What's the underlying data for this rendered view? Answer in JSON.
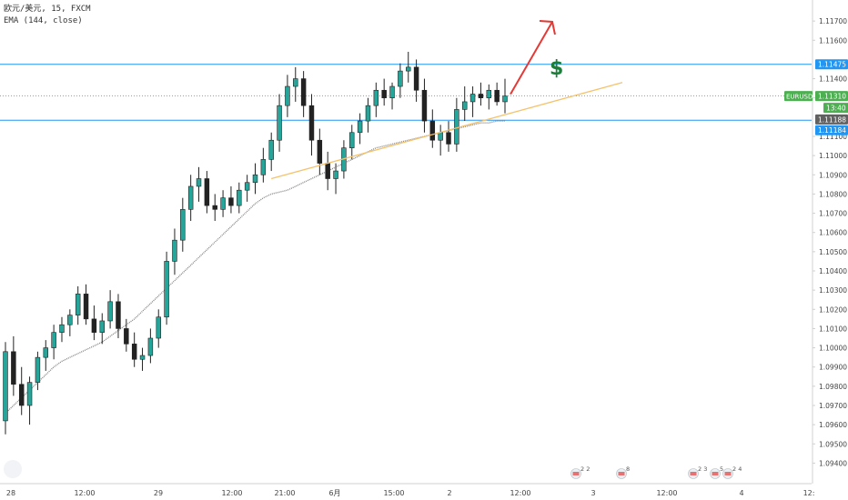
{
  "header": {
    "symbol_line": "欧元/美元, 15, FXCM",
    "indicator_line": "EMA (144, close)"
  },
  "chart_data": {
    "type": "candlestick",
    "symbol": "EURUSD",
    "ylim": [
      1.0935,
      1.118
    ],
    "y_ticks": [
      1.094,
      1.095,
      1.096,
      1.097,
      1.098,
      1.099,
      1.1,
      1.101,
      1.102,
      1.103,
      1.104,
      1.105,
      1.106,
      1.107,
      1.108,
      1.109,
      1.11,
      1.111,
      1.113,
      1.114,
      1.116,
      1.117
    ],
    "x_ticks": [
      "28",
      "12:00",
      "29",
      "12:00",
      "21:00",
      "6月",
      "15:00",
      "2",
      "12:00",
      "3",
      "12:00",
      "4",
      "12:"
    ],
    "ohlc": [
      {
        "o": 1.0962,
        "h": 1.1003,
        "l": 1.0955,
        "c": 1.0998
      },
      {
        "o": 1.0998,
        "h": 1.1006,
        "l": 1.0975,
        "c": 1.0981
      },
      {
        "o": 1.0981,
        "h": 1.099,
        "l": 1.0965,
        "c": 1.097
      },
      {
        "o": 1.097,
        "h": 1.0985,
        "l": 1.096,
        "c": 1.0982
      },
      {
        "o": 1.0982,
        "h": 1.0998,
        "l": 1.0978,
        "c": 1.0995
      },
      {
        "o": 1.0995,
        "h": 1.1004,
        "l": 1.0988,
        "c": 1.1
      },
      {
        "o": 1.1,
        "h": 1.1012,
        "l": 1.0994,
        "c": 1.1008
      },
      {
        "o": 1.1008,
        "h": 1.1016,
        "l": 1.1003,
        "c": 1.1012
      },
      {
        "o": 1.1012,
        "h": 1.102,
        "l": 1.1006,
        "c": 1.1017
      },
      {
        "o": 1.1017,
        "h": 1.1032,
        "l": 1.1012,
        "c": 1.1028
      },
      {
        "o": 1.1028,
        "h": 1.1033,
        "l": 1.1012,
        "c": 1.1015
      },
      {
        "o": 1.1015,
        "h": 1.1022,
        "l": 1.1004,
        "c": 1.1008
      },
      {
        "o": 1.1008,
        "h": 1.1018,
        "l": 1.1002,
        "c": 1.1014
      },
      {
        "o": 1.1014,
        "h": 1.103,
        "l": 1.101,
        "c": 1.1024
      },
      {
        "o": 1.1024,
        "h": 1.1028,
        "l": 1.1005,
        "c": 1.101
      },
      {
        "o": 1.101,
        "h": 1.1015,
        "l": 1.0998,
        "c": 1.1002
      },
      {
        "o": 1.1002,
        "h": 1.1008,
        "l": 1.099,
        "c": 1.0994
      },
      {
        "o": 1.0994,
        "h": 1.1,
        "l": 1.0988,
        "c": 1.0996
      },
      {
        "o": 1.0996,
        "h": 1.101,
        "l": 1.0992,
        "c": 1.1005
      },
      {
        "o": 1.1005,
        "h": 1.102,
        "l": 1.1,
        "c": 1.1016
      },
      {
        "o": 1.1016,
        "h": 1.105,
        "l": 1.1012,
        "c": 1.1045
      },
      {
        "o": 1.1045,
        "h": 1.1062,
        "l": 1.1038,
        "c": 1.1056
      },
      {
        "o": 1.1056,
        "h": 1.1078,
        "l": 1.105,
        "c": 1.1072
      },
      {
        "o": 1.1072,
        "h": 1.109,
        "l": 1.1066,
        "c": 1.1084
      },
      {
        "o": 1.1084,
        "h": 1.1094,
        "l": 1.1076,
        "c": 1.1088
      },
      {
        "o": 1.1088,
        "h": 1.1092,
        "l": 1.107,
        "c": 1.1074
      },
      {
        "o": 1.1074,
        "h": 1.108,
        "l": 1.1066,
        "c": 1.1072
      },
      {
        "o": 1.1072,
        "h": 1.1082,
        "l": 1.1068,
        "c": 1.1078
      },
      {
        "o": 1.1078,
        "h": 1.1084,
        "l": 1.107,
        "c": 1.1074
      },
      {
        "o": 1.1074,
        "h": 1.1086,
        "l": 1.107,
        "c": 1.1082
      },
      {
        "o": 1.1082,
        "h": 1.109,
        "l": 1.1076,
        "c": 1.1086
      },
      {
        "o": 1.1086,
        "h": 1.1096,
        "l": 1.108,
        "c": 1.109
      },
      {
        "o": 1.109,
        "h": 1.1104,
        "l": 1.1086,
        "c": 1.1098
      },
      {
        "o": 1.1098,
        "h": 1.1112,
        "l": 1.1092,
        "c": 1.1108
      },
      {
        "o": 1.1108,
        "h": 1.1132,
        "l": 1.1102,
        "c": 1.1126
      },
      {
        "o": 1.1126,
        "h": 1.1142,
        "l": 1.112,
        "c": 1.1136
      },
      {
        "o": 1.1136,
        "h": 1.1146,
        "l": 1.1128,
        "c": 1.114
      },
      {
        "o": 1.114,
        "h": 1.1144,
        "l": 1.112,
        "c": 1.1126
      },
      {
        "o": 1.1126,
        "h": 1.1132,
        "l": 1.11,
        "c": 1.1108
      },
      {
        "o": 1.1108,
        "h": 1.1114,
        "l": 1.109,
        "c": 1.1096
      },
      {
        "o": 1.1096,
        "h": 1.1102,
        "l": 1.1082,
        "c": 1.1088
      },
      {
        "o": 1.1088,
        "h": 1.1096,
        "l": 1.108,
        "c": 1.1092
      },
      {
        "o": 1.1092,
        "h": 1.1108,
        "l": 1.1088,
        "c": 1.1104
      },
      {
        "o": 1.1104,
        "h": 1.1116,
        "l": 1.1098,
        "c": 1.1112
      },
      {
        "o": 1.1112,
        "h": 1.1122,
        "l": 1.1106,
        "c": 1.1118
      },
      {
        "o": 1.1118,
        "h": 1.113,
        "l": 1.1112,
        "c": 1.1126
      },
      {
        "o": 1.1126,
        "h": 1.1138,
        "l": 1.112,
        "c": 1.1134
      },
      {
        "o": 1.1134,
        "h": 1.114,
        "l": 1.1126,
        "c": 1.113
      },
      {
        "o": 1.113,
        "h": 1.1138,
        "l": 1.1124,
        "c": 1.1136
      },
      {
        "o": 1.1136,
        "h": 1.1148,
        "l": 1.113,
        "c": 1.1144
      },
      {
        "o": 1.1144,
        "h": 1.1154,
        "l": 1.1138,
        "c": 1.1146
      },
      {
        "o": 1.1146,
        "h": 1.115,
        "l": 1.1128,
        "c": 1.1134
      },
      {
        "o": 1.1134,
        "h": 1.114,
        "l": 1.1112,
        "c": 1.1118
      },
      {
        "o": 1.1118,
        "h": 1.1124,
        "l": 1.1104,
        "c": 1.1108
      },
      {
        "o": 1.1108,
        "h": 1.1116,
        "l": 1.11,
        "c": 1.1112
      },
      {
        "o": 1.1112,
        "h": 1.1118,
        "l": 1.1102,
        "c": 1.1106
      },
      {
        "o": 1.1106,
        "h": 1.113,
        "l": 1.1102,
        "c": 1.1124
      },
      {
        "o": 1.1124,
        "h": 1.1136,
        "l": 1.1118,
        "c": 1.1128
      },
      {
        "o": 1.1128,
        "h": 1.1136,
        "l": 1.112,
        "c": 1.1132
      },
      {
        "o": 1.1132,
        "h": 1.1138,
        "l": 1.1126,
        "c": 1.113
      },
      {
        "o": 1.113,
        "h": 1.1137,
        "l": 1.1124,
        "c": 1.1134
      },
      {
        "o": 1.1134,
        "h": 1.1138,
        "l": 1.1126,
        "c": 1.1128
      },
      {
        "o": 1.1128,
        "h": 1.114,
        "l": 1.1122,
        "c": 1.1131
      }
    ],
    "ema": [
      1.0966,
      1.097,
      1.0974,
      1.0978,
      1.0982,
      1.0986,
      1.099,
      1.0993,
      1.0995,
      1.0997,
      1.0999,
      1.1001,
      1.1003,
      1.1006,
      1.1009,
      1.1012,
      1.1015,
      1.1019,
      1.1023,
      1.1027,
      1.1031,
      1.1035,
      1.1039,
      1.1043,
      1.1047,
      1.1051,
      1.1055,
      1.1059,
      1.1063,
      1.1067,
      1.1071,
      1.1075,
      1.1078,
      1.108,
      1.1081,
      1.1082,
      1.1084,
      1.1086,
      1.1088,
      1.109,
      1.1092,
      1.1094,
      1.1096,
      1.1098,
      1.11,
      1.1102,
      1.1104,
      1.1105,
      1.1106,
      1.1107,
      1.1108,
      1.1109,
      1.111,
      1.1111,
      1.1112,
      1.1113,
      1.1114,
      1.1115,
      1.1116,
      1.1117,
      1.1117,
      1.1118,
      1.1118
    ],
    "horizontal_levels": [
      {
        "label": "1.11475",
        "value": 1.11475,
        "color": "#2196f3"
      },
      {
        "label": "1.11184",
        "value": 1.11184,
        "color": "#2196f3"
      }
    ],
    "price_tags": [
      {
        "name": "EURUSD",
        "label": "1.11310",
        "value": 1.1131,
        "color": "#4caf50"
      },
      {
        "label": "13:40",
        "color": "#4caf50"
      },
      {
        "label": "1.11188",
        "value": 1.11188,
        "color": "#616161"
      },
      {
        "label": "1.11184",
        "value": 1.11184,
        "color": "#2196f3"
      },
      {
        "label": "1.11475",
        "value": 1.11475,
        "color": "#2196f3"
      }
    ],
    "trendline": {
      "from": [
        1.1088,
        33
      ],
      "to": [
        1.1138,
        88
      ],
      "color": "#f5c26b"
    },
    "arrow": {
      "from": [
        1.1131,
        63
      ],
      "to": [
        1.1168,
        68
      ],
      "color": "#e53935"
    },
    "annotation": {
      "text": "$",
      "color": "#1b7f3a"
    },
    "event_markers": [
      {
        "label": "2",
        "count": "2"
      },
      {
        "label": "8",
        "count": ""
      },
      {
        "label": "2",
        "count": "3"
      },
      {
        "label": "5",
        "count": ""
      },
      {
        "label": "2",
        "count": "4"
      }
    ],
    "colors": {
      "up": "#26a69a",
      "down": "#222222",
      "wick": "#222222",
      "ema": "#888888",
      "axis_text": "#444444",
      "axis_line": "#d0d0d0"
    }
  }
}
